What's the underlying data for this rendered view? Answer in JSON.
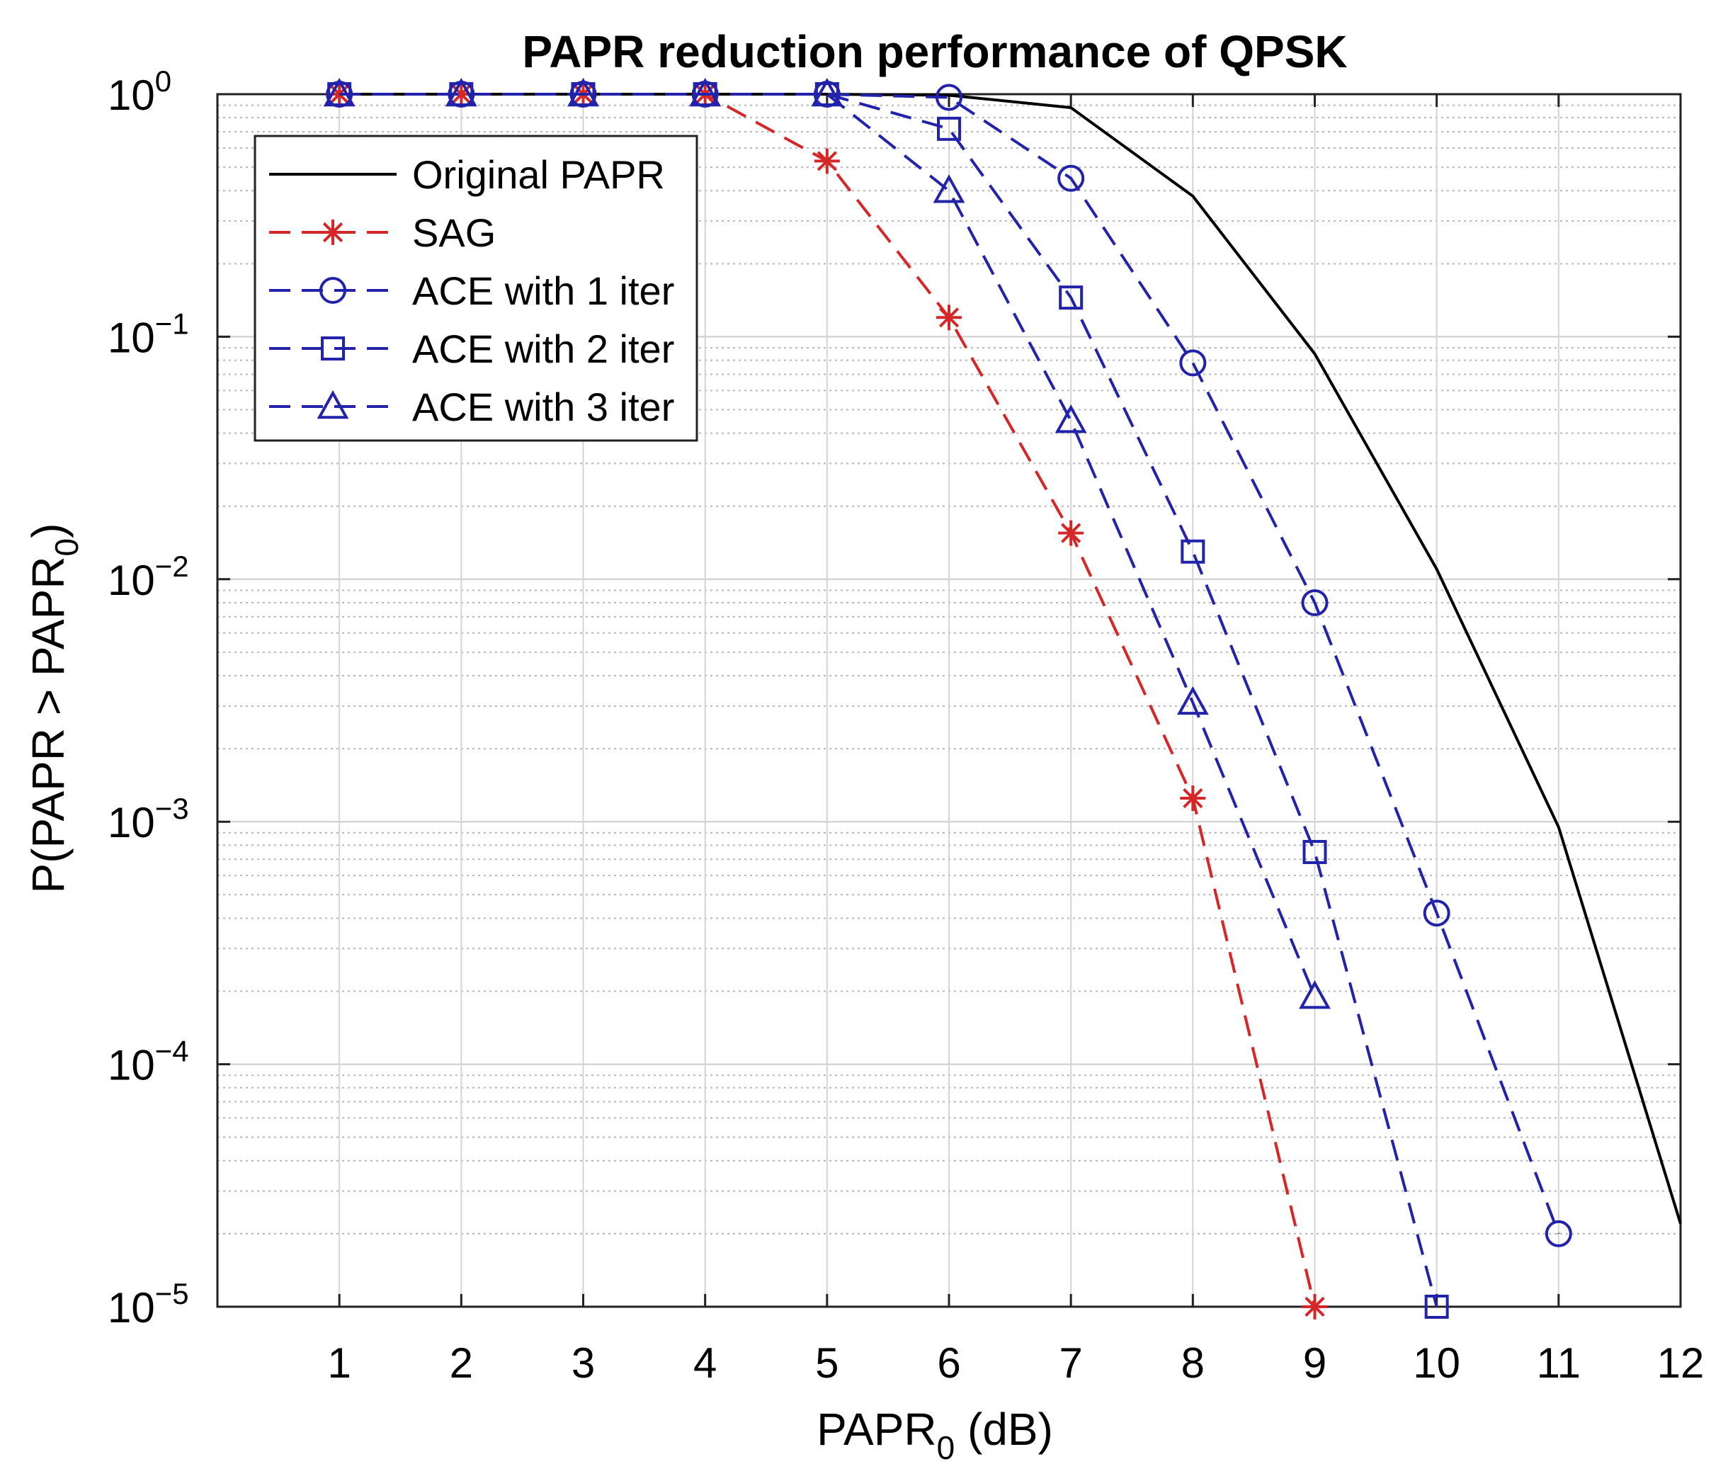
{
  "chart_data": {
    "type": "line",
    "title": "PAPR reduction performance of QPSK",
    "xlabel": {
      "main": "PAPR",
      "sub": "0",
      "unit": "(dB)"
    },
    "ylabel": {
      "main": "P(PAPR > PAPR",
      "sub": "0",
      "close": ")"
    },
    "xlim": [
      0,
      12
    ],
    "ylim": [
      1e-05,
      1
    ],
    "yscale": "log",
    "grid": true,
    "legend_position": "top-left",
    "x_ticks": [
      1,
      2,
      3,
      4,
      5,
      6,
      7,
      8,
      9,
      10,
      11,
      12
    ],
    "x_tick_labels": [
      "1",
      "2",
      "3",
      "4",
      "5",
      "6",
      "7",
      "8",
      "9",
      "10",
      "11",
      "12"
    ],
    "y_ticks": [
      {
        "value": 1,
        "base": "10",
        "exp": "0"
      },
      {
        "value": 0.1,
        "base": "10",
        "exp": "−1"
      },
      {
        "value": 0.01,
        "base": "10",
        "exp": "−2"
      },
      {
        "value": 0.001,
        "base": "10",
        "exp": "−3"
      },
      {
        "value": 0.0001,
        "base": "10",
        "exp": "−4"
      },
      {
        "value": 1e-05,
        "base": "10",
        "exp": "−5"
      }
    ],
    "series": [
      {
        "name": "Original PAPR",
        "color": "#000000",
        "style": "solid",
        "marker": "none",
        "x": [
          1,
          2,
          3,
          4,
          5,
          6,
          7,
          8,
          9,
          10,
          11,
          12
        ],
        "y": [
          1,
          1,
          1,
          1,
          1,
          0.99,
          0.88,
          0.38,
          0.085,
          0.011,
          0.00095,
          2.2e-05
        ]
      },
      {
        "name": "SAG",
        "color": "#d62728",
        "style": "dashed",
        "marker": "star",
        "x": [
          1,
          2,
          3,
          4,
          5,
          6,
          7,
          8,
          9
        ],
        "y": [
          1,
          1,
          1,
          1,
          0.53,
          0.12,
          0.0155,
          0.00125,
          1e-05
        ]
      },
      {
        "name": "ACE with 1 iter",
        "color": "#2222aa",
        "style": "dashed",
        "marker": "circle",
        "x": [
          1,
          2,
          3,
          4,
          5,
          6,
          7,
          8,
          9,
          10,
          11
        ],
        "y": [
          1,
          1,
          1,
          1,
          1,
          0.97,
          0.45,
          0.078,
          0.008,
          0.00042,
          2e-05
        ]
      },
      {
        "name": "ACE with 2 iter",
        "color": "#2222aa",
        "style": "dashed",
        "marker": "square",
        "x": [
          1,
          2,
          3,
          4,
          5,
          6,
          7,
          8,
          9,
          10
        ],
        "y": [
          1,
          1,
          1,
          1,
          1,
          0.72,
          0.145,
          0.013,
          0.00075,
          1e-05
        ]
      },
      {
        "name": "ACE with 3 iter",
        "color": "#2222aa",
        "style": "dashed",
        "marker": "triangle",
        "x": [
          1,
          2,
          3,
          4,
          5,
          6,
          7,
          8,
          9
        ],
        "y": [
          1,
          1,
          1,
          1,
          1,
          0.4,
          0.045,
          0.0031,
          0.00019
        ]
      }
    ]
  }
}
